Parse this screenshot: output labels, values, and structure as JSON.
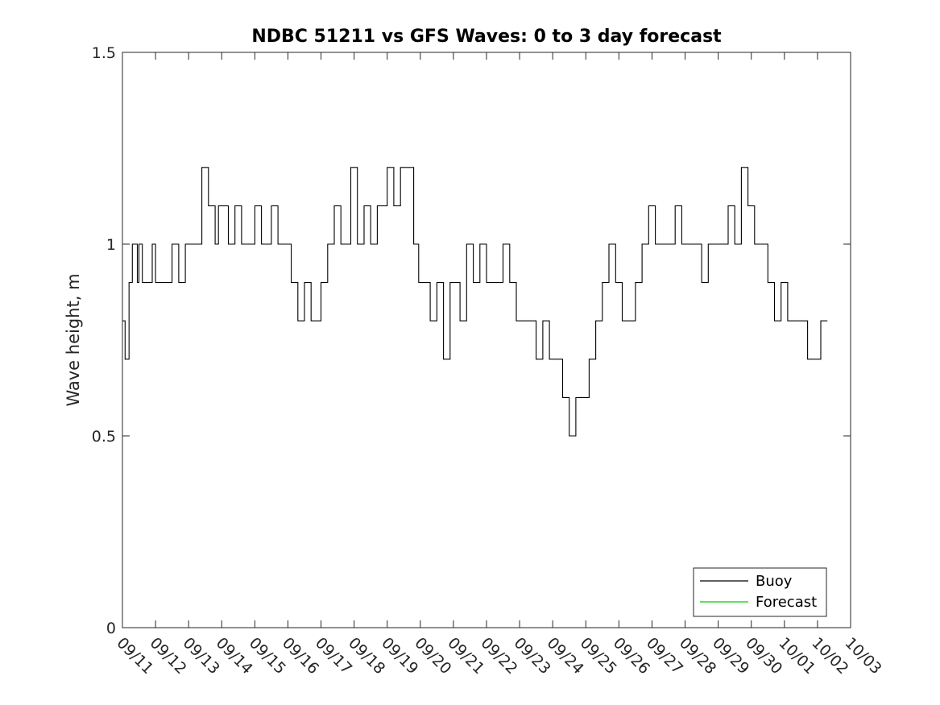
{
  "chart_data": {
    "type": "line",
    "title": "NDBC 51211 vs GFS Waves: 0 to 3 day forecast",
    "xlabel": "",
    "ylabel": "Wave height, m",
    "ylim": [
      0,
      1.5
    ],
    "y_ticks": [
      {
        "value": 0,
        "label": "0"
      },
      {
        "value": 0.5,
        "label": "0.5"
      },
      {
        "value": 1,
        "label": "1"
      },
      {
        "value": 1.5,
        "label": "1.5"
      }
    ],
    "xlim": [
      0,
      22
    ],
    "x_unit": "days since 09/11",
    "x_ticks": [
      "09/11",
      "09/12",
      "09/13",
      "09/14",
      "09/15",
      "09/16",
      "09/17",
      "09/18",
      "09/19",
      "09/20",
      "09/21",
      "09/22",
      "09/23",
      "09/24",
      "09/25",
      "09/26",
      "09/27",
      "09/28",
      "09/29",
      "09/30",
      "10/01",
      "10/02",
      "10/03"
    ],
    "legend": {
      "placement": "bottom-right",
      "entries": [
        {
          "name": "Buoy",
          "color": "#000000"
        },
        {
          "name": "Forecast",
          "color": "#00cc00"
        }
      ]
    },
    "series": [
      {
        "name": "Buoy",
        "color": "#000000",
        "x": [
          0,
          0.08,
          0.15,
          0.2,
          0.3,
          0.45,
          0.5,
          0.6,
          0.9,
          1.0,
          1.1,
          1.25,
          1.5,
          1.7,
          1.9,
          2.1,
          2.4,
          2.6,
          2.8,
          2.9,
          3.0,
          3.2,
          3.4,
          3.6,
          3.8,
          4.0,
          4.2,
          4.5,
          4.7,
          4.9,
          5.1,
          5.3,
          5.5,
          5.7,
          5.8,
          6.0,
          6.2,
          6.4,
          6.6,
          6.9,
          7.1,
          7.3,
          7.5,
          7.7,
          8.0,
          8.2,
          8.4,
          8.6,
          8.8,
          8.95,
          9.1,
          9.3,
          9.5,
          9.7,
          9.9,
          10.1,
          10.2,
          10.4,
          10.6,
          10.8,
          11.0,
          11.2,
          11.5,
          11.7,
          11.9,
          12.2,
          12.5,
          12.7,
          12.9,
          13.1,
          13.3,
          13.5,
          13.7,
          13.9,
          14.1,
          14.3,
          14.5,
          14.7,
          14.9,
          15.0,
          15.1,
          15.3,
          15.5,
          15.7,
          15.9,
          16.1,
          16.3,
          16.5,
          16.7,
          16.9,
          17.1,
          17.3,
          17.5,
          17.7,
          17.9,
          18.1,
          18.3,
          18.5,
          18.7,
          18.9,
          19.1,
          19.3,
          19.5,
          19.7,
          19.9,
          20.1,
          20.3,
          20.5,
          20.7,
          20.9,
          21.1,
          21.3
        ],
        "y": [
          0.8,
          0.7,
          0.7,
          0.9,
          1.0,
          0.9,
          1.0,
          0.9,
          1.0,
          0.9,
          0.9,
          0.9,
          1.0,
          0.9,
          1.0,
          1.0,
          1.2,
          1.1,
          1.0,
          1.1,
          1.1,
          1.0,
          1.1,
          1.0,
          1.0,
          1.1,
          1.0,
          1.1,
          1.0,
          1.0,
          0.9,
          0.8,
          0.9,
          0.8,
          0.8,
          0.9,
          1.0,
          1.1,
          1.0,
          1.2,
          1.0,
          1.1,
          1.0,
          1.1,
          1.2,
          1.1,
          1.2,
          1.2,
          1.0,
          0.9,
          0.9,
          0.8,
          0.9,
          0.7,
          0.9,
          0.9,
          0.8,
          1.0,
          0.9,
          1.0,
          0.9,
          0.9,
          1.0,
          0.9,
          0.8,
          0.8,
          0.7,
          0.8,
          0.7,
          0.7,
          0.6,
          0.5,
          0.6,
          0.6,
          0.7,
          0.8,
          0.9,
          1.0,
          0.9,
          0.9,
          0.8,
          0.8,
          0.9,
          1.0,
          1.1,
          1.0,
          1.0,
          1.0,
          1.1,
          1.0,
          1.0,
          1.0,
          0.9,
          1.0,
          1.0,
          1.0,
          1.1,
          1.0,
          1.2,
          1.1,
          1.0,
          1.0,
          0.9,
          0.8,
          0.9,
          0.8,
          0.8,
          0.8,
          0.7,
          0.7,
          0.8,
          0.8
        ]
      },
      {
        "name": "Forecast",
        "color": "#00cc00",
        "x": [],
        "y": []
      }
    ]
  }
}
